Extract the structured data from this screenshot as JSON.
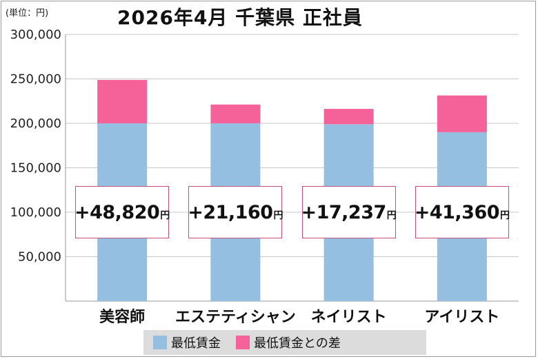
{
  "header": {
    "unit": "(単位：円)",
    "title": "2026年4月 千葉県 正社員"
  },
  "colors": {
    "base": "#95bfe0",
    "diff": "#f5629a",
    "box_border": "#c2507a"
  },
  "chart_data": {
    "type": "bar",
    "stacked": true,
    "title": "2026年4月 千葉県 正社員",
    "ylim": [
      0,
      300000
    ],
    "yticks": [
      "50,000",
      "100,000",
      "150,000",
      "200,000",
      "250,000",
      "300,000"
    ],
    "ytick_values": [
      50000,
      100000,
      150000,
      200000,
      250000,
      300000
    ],
    "categories": [
      "美容師",
      "エステティシャン",
      "ネイリスト",
      "アイリスト"
    ],
    "series": [
      {
        "name": "最低賃金",
        "values": [
          200000,
          200000,
          199000,
          190000
        ]
      },
      {
        "name": "最低賃金との差",
        "values": [
          48820,
          21160,
          17237,
          41360
        ]
      }
    ],
    "labels": [
      "+48,820",
      "+21,160",
      "+17,237",
      "+41,360"
    ],
    "label_unit": "円",
    "grid": "horizontal",
    "legend": "bottom"
  }
}
